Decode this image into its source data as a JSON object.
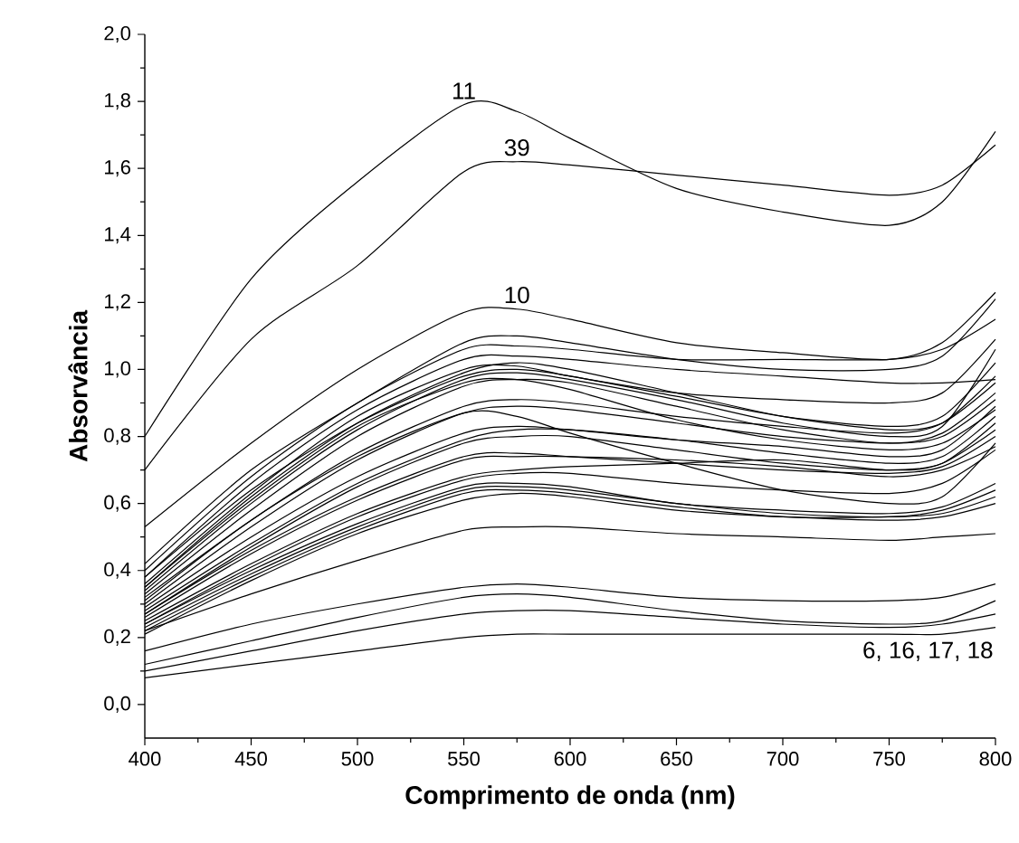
{
  "chart_data": {
    "type": "line",
    "xlabel": "Comprimento de onda (nm)",
    "ylabel": "Absorvância",
    "x": [
      400,
      450,
      500,
      550,
      575,
      600,
      650,
      700,
      750,
      775,
      800
    ],
    "xlim": [
      400,
      800
    ],
    "xticks": [
      400,
      450,
      500,
      550,
      600,
      650,
      700,
      750,
      800
    ],
    "ylim": [
      -0.1,
      2.0
    ],
    "yticks": [
      {
        "value": 0.0,
        "label": "0,0"
      },
      {
        "value": 0.2,
        "label": "0,2"
      },
      {
        "value": 0.4,
        "label": "0,4"
      },
      {
        "value": 0.6,
        "label": "0,6"
      },
      {
        "value": 0.8,
        "label": "0,8"
      },
      {
        "value": 1.0,
        "label": "1,0"
      },
      {
        "value": 1.2,
        "label": "1,2"
      },
      {
        "value": 1.4,
        "label": "1,4"
      },
      {
        "value": 1.6,
        "label": "1,6"
      },
      {
        "value": 1.8,
        "label": "1,8"
      },
      {
        "value": 2.0,
        "label": "2,0"
      }
    ],
    "grid": false,
    "legend": false,
    "marker": "none",
    "line_style": "solid",
    "annotations": [
      "6, 16, 17, 18"
    ],
    "series": [
      {
        "name": "11",
        "color": "#000000",
        "values": [
          0.8,
          1.27,
          1.56,
          1.79,
          1.77,
          1.69,
          1.54,
          1.47,
          1.43,
          1.5,
          1.71
        ]
      },
      {
        "name": "39",
        "color": "#000000",
        "values": [
          0.7,
          1.09,
          1.31,
          1.59,
          1.62,
          1.61,
          1.58,
          1.55,
          1.52,
          1.55,
          1.67
        ]
      },
      {
        "name": "10",
        "color": "#000000",
        "values": [
          0.53,
          0.78,
          1.0,
          1.17,
          1.18,
          1.15,
          1.08,
          1.05,
          1.03,
          1.08,
          1.23
        ]
      },
      {
        "color": "#000000",
        "values": [
          0.42,
          0.7,
          0.9,
          1.08,
          1.1,
          1.08,
          1.03,
          1.0,
          1.0,
          1.04,
          1.21
        ]
      },
      {
        "color": "#000000",
        "values": [
          0.4,
          0.68,
          0.9,
          1.06,
          1.07,
          1.06,
          1.03,
          1.03,
          1.03,
          1.06,
          1.15
        ]
      },
      {
        "color": "#000000",
        "values": [
          0.38,
          0.66,
          0.88,
          1.03,
          1.04,
          1.03,
          1.0,
          0.98,
          0.96,
          0.96,
          0.97
        ]
      },
      {
        "color": "#000000",
        "values": [
          0.36,
          0.63,
          0.86,
          1.0,
          1.01,
          0.98,
          0.93,
          0.91,
          0.9,
          0.93,
          1.09
        ]
      },
      {
        "color": "#000000",
        "values": [
          0.35,
          0.62,
          0.84,
          0.99,
          1.02,
          1.0,
          0.93,
          0.86,
          0.82,
          0.84,
          0.96
        ]
      },
      {
        "color": "#000000",
        "values": [
          0.34,
          0.6,
          0.82,
          0.97,
          0.99,
          0.97,
          0.91,
          0.84,
          0.8,
          0.83,
          1.06
        ]
      },
      {
        "color": "#000000",
        "values": [
          0.33,
          0.58,
          0.8,
          0.95,
          0.97,
          0.96,
          0.89,
          0.82,
          0.78,
          0.81,
          0.93
        ]
      },
      {
        "color": "#000000",
        "values": [
          0.38,
          0.64,
          0.84,
          0.98,
          1.0,
          0.98,
          0.92,
          0.86,
          0.83,
          0.86,
          1.02
        ]
      },
      {
        "color": "#000000",
        "values": [
          0.32,
          0.55,
          0.75,
          0.89,
          0.91,
          0.9,
          0.86,
          0.83,
          0.81,
          0.84,
          0.98
        ]
      },
      {
        "color": "#000000",
        "values": [
          0.3,
          0.53,
          0.73,
          0.87,
          0.89,
          0.88,
          0.84,
          0.8,
          0.78,
          0.8,
          0.91
        ]
      },
      {
        "color": "#000000",
        "values": [
          0.31,
          0.55,
          0.74,
          0.87,
          0.86,
          0.81,
          0.72,
          0.64,
          0.6,
          0.62,
          0.78
        ]
      },
      {
        "color": "#000000",
        "values": [
          0.29,
          0.5,
          0.68,
          0.81,
          0.83,
          0.82,
          0.79,
          0.77,
          0.74,
          0.76,
          0.89
        ]
      },
      {
        "color": "#000000",
        "values": [
          0.28,
          0.48,
          0.66,
          0.79,
          0.82,
          0.82,
          0.79,
          0.75,
          0.72,
          0.74,
          0.86
        ]
      },
      {
        "color": "#000000",
        "values": [
          0.27,
          0.46,
          0.62,
          0.74,
          0.75,
          0.74,
          0.72,
          0.7,
          0.69,
          0.71,
          0.8
        ]
      },
      {
        "color": "#000000",
        "values": [
          0.26,
          0.45,
          0.61,
          0.73,
          0.74,
          0.74,
          0.73,
          0.71,
          0.68,
          0.7,
          0.77
        ]
      },
      {
        "color": "#000000",
        "values": [
          0.25,
          0.42,
          0.57,
          0.68,
          0.7,
          0.71,
          0.72,
          0.73,
          0.7,
          0.72,
          0.84
        ]
      },
      {
        "color": "#000000",
        "values": [
          0.24,
          0.4,
          0.54,
          0.65,
          0.66,
          0.65,
          0.6,
          0.58,
          0.57,
          0.59,
          0.66
        ]
      },
      {
        "color": "#000000",
        "values": [
          0.23,
          0.39,
          0.53,
          0.64,
          0.65,
          0.64,
          0.6,
          0.57,
          0.56,
          0.58,
          0.64
        ]
      },
      {
        "color": "#000000",
        "values": [
          0.22,
          0.38,
          0.52,
          0.63,
          0.64,
          0.63,
          0.59,
          0.56,
          0.56,
          0.57,
          0.62
        ]
      },
      {
        "color": "#000000",
        "values": [
          0.21,
          0.37,
          0.51,
          0.61,
          0.63,
          0.62,
          0.58,
          0.56,
          0.55,
          0.56,
          0.6
        ]
      },
      {
        "color": "#000000",
        "values": [
          0.27,
          0.47,
          0.65,
          0.78,
          0.8,
          0.8,
          0.76,
          0.72,
          0.7,
          0.72,
          0.82
        ]
      },
      {
        "color": "#000000",
        "values": [
          0.35,
          0.61,
          0.83,
          0.96,
          0.97,
          0.94,
          0.85,
          0.79,
          0.76,
          0.78,
          0.88
        ]
      },
      {
        "color": "#000000",
        "values": [
          0.24,
          0.41,
          0.56,
          0.67,
          0.69,
          0.69,
          0.66,
          0.64,
          0.63,
          0.66,
          0.76
        ]
      },
      {
        "color": "#000000",
        "values": [
          0.22,
          0.33,
          0.43,
          0.52,
          0.53,
          0.53,
          0.51,
          0.5,
          0.49,
          0.5,
          0.51
        ]
      },
      {
        "color": "#000000",
        "values": [
          0.16,
          0.24,
          0.3,
          0.35,
          0.36,
          0.35,
          0.32,
          0.31,
          0.31,
          0.32,
          0.36
        ]
      },
      {
        "color": "#000000",
        "values": [
          0.12,
          0.19,
          0.26,
          0.32,
          0.33,
          0.32,
          0.28,
          0.25,
          0.24,
          0.25,
          0.31
        ]
      },
      {
        "color": "#000000",
        "values": [
          0.1,
          0.16,
          0.22,
          0.27,
          0.28,
          0.28,
          0.26,
          0.24,
          0.23,
          0.24,
          0.27
        ]
      },
      {
        "color": "#000000",
        "values": [
          0.08,
          0.12,
          0.16,
          0.2,
          0.21,
          0.21,
          0.21,
          0.21,
          0.21,
          0.21,
          0.23
        ]
      }
    ]
  }
}
